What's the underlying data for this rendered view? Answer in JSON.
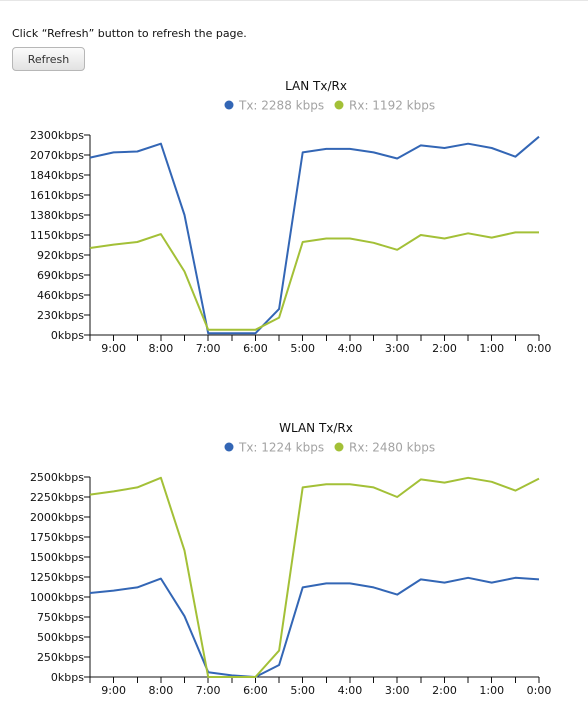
{
  "instruction": "Click “Refresh” button to refresh the page.",
  "refresh_label": "Refresh",
  "chart_data": [
    {
      "type": "line",
      "title": "LAN Tx/Rx",
      "x": [
        "9:30",
        "9:00",
        "8:30",
        "8:00",
        "7:30",
        "7:00",
        "6:30",
        "6:00",
        "5:30",
        "5:00",
        "4:30",
        "4:00",
        "3:30",
        "3:00",
        "2:30",
        "2:00",
        "1:30",
        "1:00",
        "0:30",
        "0:00"
      ],
      "x_tick_labels": [
        "9:00",
        "8:00",
        "7:00",
        "6:00",
        "5:00",
        "4:00",
        "3:00",
        "2:00",
        "1:00",
        "0:00"
      ],
      "y_tick_labels": [
        "0kbps",
        "230kbps",
        "460kbps",
        "690kbps",
        "920kbps",
        "1150kbps",
        "1380kbps",
        "1610kbps",
        "1840kbps",
        "2070kbps",
        "2300kbps"
      ],
      "ylim": [
        0,
        2300
      ],
      "unit": "kbps",
      "grid": false,
      "legend_position": "top-center",
      "series": [
        {
          "name": "Tx",
          "legend_label": "Tx: 2288 kbps",
          "color": "#3366b5",
          "values": [
            2040,
            2100,
            2110,
            2200,
            1380,
            20,
            20,
            20,
            300,
            2100,
            2140,
            2140,
            2100,
            2030,
            2180,
            2150,
            2200,
            2150,
            2050,
            2280
          ]
        },
        {
          "name": "Rx",
          "legend_label": "Rx: 1192 kbps",
          "color": "#a3c037",
          "values": [
            1000,
            1040,
            1070,
            1160,
            730,
            60,
            60,
            60,
            200,
            1070,
            1110,
            1110,
            1060,
            980,
            1150,
            1110,
            1170,
            1120,
            1180,
            1180
          ]
        }
      ]
    },
    {
      "type": "line",
      "title": "WLAN Tx/Rx",
      "x": [
        "9:30",
        "9:00",
        "8:30",
        "8:00",
        "7:30",
        "7:00",
        "6:30",
        "6:00",
        "5:30",
        "5:00",
        "4:30",
        "4:00",
        "3:30",
        "3:00",
        "2:30",
        "2:00",
        "1:30",
        "1:00",
        "0:30",
        "0:00"
      ],
      "x_tick_labels": [
        "9:00",
        "8:00",
        "7:00",
        "6:00",
        "5:00",
        "4:00",
        "3:00",
        "2:00",
        "1:00",
        "0:00"
      ],
      "y_tick_labels": [
        "0kbps",
        "250kbps",
        "500kbps",
        "750kbps",
        "1000kbps",
        "1250kbps",
        "1500kbps",
        "1750kbps",
        "2000kbps",
        "2250kbps",
        "2500kbps"
      ],
      "ylim": [
        0,
        2500
      ],
      "unit": "kbps",
      "grid": false,
      "legend_position": "top-center",
      "series": [
        {
          "name": "Tx",
          "legend_label": "Tx: 1224 kbps",
          "color": "#3366b5",
          "values": [
            1050,
            1080,
            1120,
            1230,
            760,
            60,
            20,
            0,
            150,
            1120,
            1170,
            1170,
            1120,
            1030,
            1220,
            1180,
            1240,
            1180,
            1240,
            1220
          ]
        },
        {
          "name": "Rx",
          "legend_label": "Rx: 2480 kbps",
          "color": "#a3c037",
          "values": [
            2280,
            2320,
            2370,
            2490,
            1580,
            0,
            0,
            0,
            330,
            2370,
            2410,
            2410,
            2370,
            2250,
            2470,
            2430,
            2490,
            2440,
            2330,
            2480
          ]
        }
      ]
    }
  ]
}
